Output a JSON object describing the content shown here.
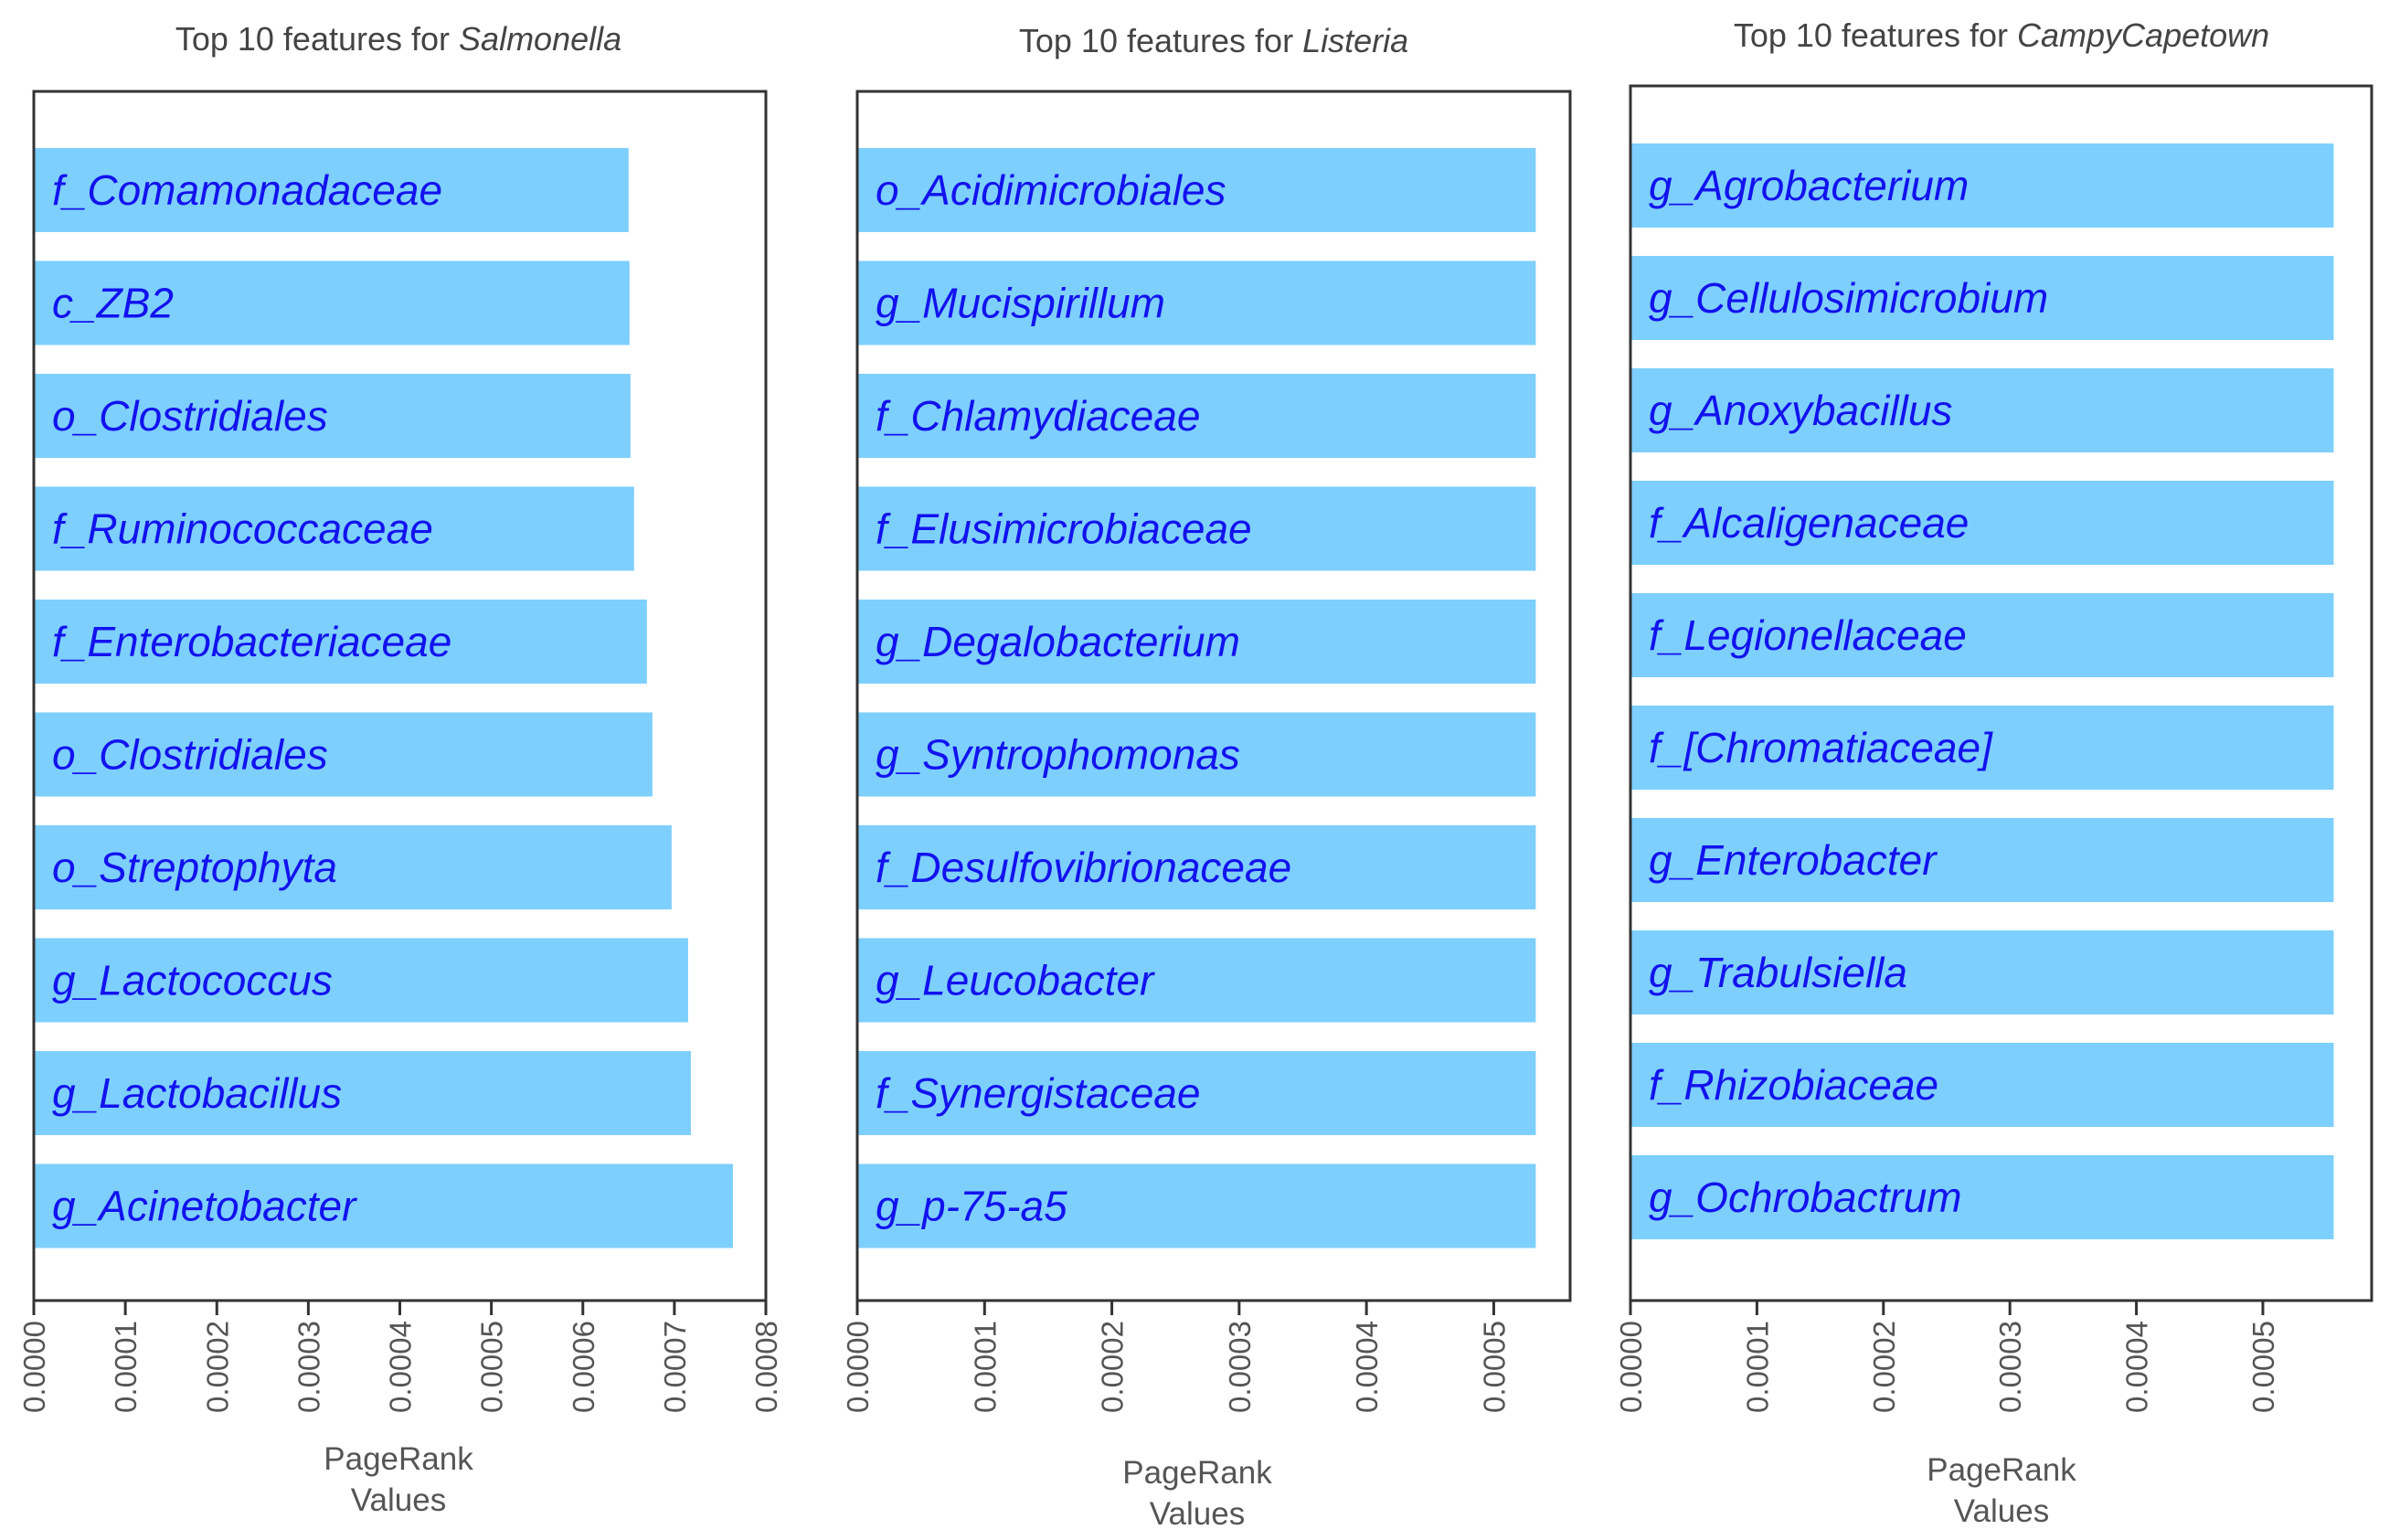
{
  "chart_data": [
    {
      "type": "bar",
      "orientation": "horizontal",
      "title_prefix": "Top 10 features for ",
      "title_species": "Salmonella",
      "categories": [
        "f_Comamonadaceae",
        "c_ZB2",
        "o_Clostridiales",
        "f_Ruminococcaceae",
        "f_Enterobacteriaceae",
        "o_Clostridiales",
        "o_Streptophyta",
        "g_Lactococcus",
        "g_Lactobacillus",
        "g_Acinetobacter"
      ],
      "values": [
        0.00065,
        0.000651,
        0.000652,
        0.000656,
        0.00067,
        0.000676,
        0.000697,
        0.000715,
        0.000718,
        0.000764
      ],
      "xlim": [
        0,
        0.0008
      ],
      "xticks": [
        "0.0000",
        "0.0001",
        "0.0002",
        "0.0003",
        "0.0004",
        "0.0005",
        "0.0006",
        "0.0007",
        "0.0008"
      ],
      "xlabel_line1": "PageRank",
      "xlabel_line2": "Values",
      "grid": false,
      "bar_color": "#7dcffd",
      "label_color": "#1212ee"
    },
    {
      "type": "bar",
      "orientation": "horizontal",
      "title_prefix": "Top 10 features for ",
      "title_species": "Listeria",
      "categories": [
        "o_Acidimicrobiales",
        "g_Mucispirillum",
        "f_Chlamydiaceae",
        "f_Elusimicrobiaceae",
        "g_Degalobacterium",
        "g_Syntrophomonas",
        "f_Desulfovibrionaceae",
        "g_Leucobacter",
        "f_Synergistaceae",
        "g_p-75-a5"
      ],
      "values": [
        0.000533,
        0.000533,
        0.000533,
        0.000533,
        0.000533,
        0.000533,
        0.000533,
        0.000533,
        0.000533,
        0.000533
      ],
      "xlim": [
        0,
        0.00056
      ],
      "xticks": [
        "0.0000",
        "0.0001",
        "0.0002",
        "0.0003",
        "0.0004",
        "0.0005"
      ],
      "xlabel_line1": "PageRank",
      "xlabel_line2": "Values",
      "grid": false,
      "bar_color": "#7dcffd",
      "label_color": "#1212ee"
    },
    {
      "type": "bar",
      "orientation": "horizontal",
      "title_prefix": "Top 10 features for ",
      "title_species": "CampyCapetown",
      "categories": [
        "g_Agrobacterium",
        "g_Cellulosimicrobium",
        "g_Anoxybacillus",
        "f_Alcaligenaceae",
        "f_Legionellaceae",
        "f_[Chromatiaceae]",
        "g_Enterobacter",
        "g_Trabulsiella",
        "f_Rhizobiaceae",
        "g_Ochrobactrum"
      ],
      "values": [
        0.000556,
        0.000556,
        0.000556,
        0.000556,
        0.000556,
        0.000556,
        0.000556,
        0.000556,
        0.000556,
        0.000556
      ],
      "xlim": [
        0,
        0.000586
      ],
      "xticks": [
        "0.0000",
        "0.0001",
        "0.0002",
        "0.0003",
        "0.0004",
        "0.0005"
      ],
      "xlabel_line1": "PageRank",
      "xlabel_line2": "Values",
      "grid": false,
      "bar_color": "#7dcffd",
      "label_color": "#1212ee"
    }
  ]
}
